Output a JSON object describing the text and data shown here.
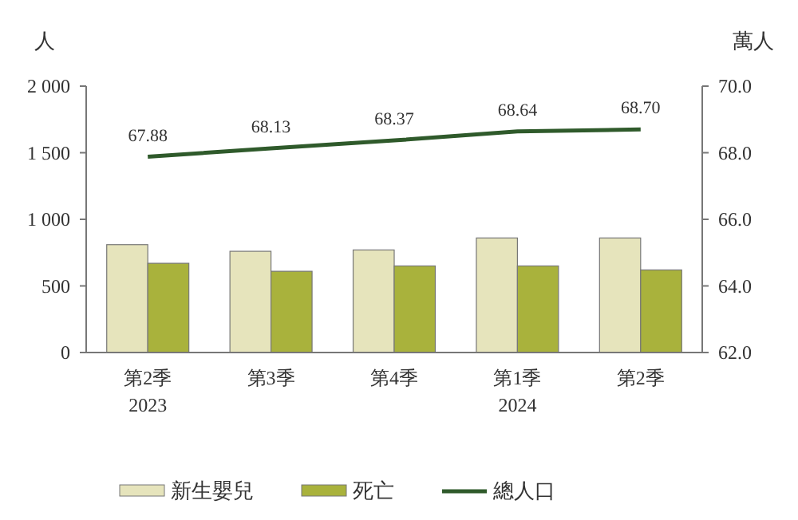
{
  "chart_data": {
    "type": "bar",
    "ylabel": "人",
    "y2label": "萬人",
    "categories": [
      "第2季\n2023",
      "第3季",
      "第4季",
      "第1季\n2024",
      "第2季"
    ],
    "series": [
      {
        "name": "新生嬰兒",
        "color": "#e6e4bc",
        "values": [
          810,
          760,
          770,
          860,
          860
        ]
      },
      {
        "name": "死亡",
        "color": "#a9b23c",
        "values": [
          670,
          610,
          650,
          650,
          620
        ]
      },
      {
        "name": "總人口",
        "type": "line",
        "axis": "y2",
        "color": "#2f5a2b",
        "values": [
          67.88,
          68.13,
          68.37,
          68.64,
          68.7
        ],
        "value_labels": [
          "67.88",
          "68.13",
          "68.37",
          "68.64",
          "68.70"
        ]
      }
    ],
    "ylim": [
      0,
      2000
    ],
    "yticks": [
      0,
      500,
      {
        "value": 1000,
        "label": "1 000"
      },
      {
        "value": 1500,
        "label": "1 500"
      },
      {
        "value": 2000,
        "label": "2 000"
      }
    ],
    "y2lim": [
      62,
      70
    ],
    "y2ticks": [
      {
        "value": 62,
        "label": "62.0"
      },
      {
        "value": 64,
        "label": "64.0"
      },
      {
        "value": 66,
        "label": "66.0"
      },
      {
        "value": 68,
        "label": "68.0"
      },
      {
        "value": 70,
        "label": "70.0"
      }
    ],
    "grid": false,
    "legend": "bottom",
    "marker": "none",
    "line_style": "solid"
  }
}
